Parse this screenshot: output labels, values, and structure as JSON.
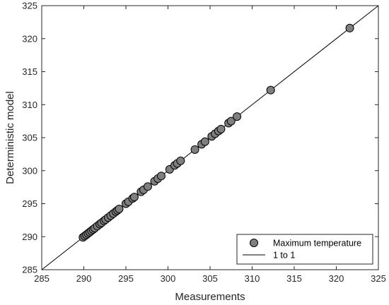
{
  "chart_data": {
    "type": "scatter",
    "title": "",
    "xlabel": "Measurements",
    "ylabel": "Deterministic model",
    "xlim": [
      285,
      325
    ],
    "ylim": [
      285,
      325
    ],
    "xticks": [
      285,
      290,
      295,
      300,
      305,
      310,
      315,
      320,
      325
    ],
    "yticks": [
      285,
      290,
      295,
      300,
      305,
      310,
      315,
      320,
      325
    ],
    "grid": false,
    "legend_position": "bottom-right",
    "series": [
      {
        "name": "Maximum temperature",
        "kind": "scatter",
        "marker_color": "#7f7f7f",
        "points": [
          [
            289.9,
            289.9
          ],
          [
            290.1,
            290.1
          ],
          [
            290.3,
            290.3
          ],
          [
            290.5,
            290.5
          ],
          [
            290.7,
            290.7
          ],
          [
            290.9,
            290.9
          ],
          [
            291.1,
            291.1
          ],
          [
            291.3,
            291.3
          ],
          [
            291.6,
            291.6
          ],
          [
            291.9,
            291.9
          ],
          [
            292.1,
            292.1
          ],
          [
            292.4,
            292.4
          ],
          [
            292.6,
            292.6
          ],
          [
            292.9,
            292.9
          ],
          [
            293.2,
            293.2
          ],
          [
            293.5,
            293.5
          ],
          [
            293.8,
            293.8
          ],
          [
            294.0,
            294.0
          ],
          [
            294.2,
            294.2
          ],
          [
            295.0,
            295.0
          ],
          [
            295.3,
            295.3
          ],
          [
            295.8,
            295.8
          ],
          [
            296.0,
            296.0
          ],
          [
            296.8,
            296.8
          ],
          [
            297.1,
            297.1
          ],
          [
            297.6,
            297.6
          ],
          [
            298.4,
            298.4
          ],
          [
            298.8,
            298.8
          ],
          [
            299.2,
            299.2
          ],
          [
            300.2,
            300.2
          ],
          [
            300.8,
            300.8
          ],
          [
            301.1,
            301.1
          ],
          [
            301.5,
            301.5
          ],
          [
            303.2,
            303.2
          ],
          [
            304.0,
            304.0
          ],
          [
            304.4,
            304.4
          ],
          [
            305.2,
            305.2
          ],
          [
            305.6,
            305.6
          ],
          [
            306.0,
            306.0
          ],
          [
            306.3,
            306.3
          ],
          [
            307.2,
            307.2
          ],
          [
            307.5,
            307.5
          ],
          [
            308.2,
            308.2
          ],
          [
            312.2,
            312.2
          ],
          [
            321.6,
            321.6
          ]
        ]
      },
      {
        "name": "1 to 1",
        "kind": "line",
        "line_color": "#000000",
        "points": [
          [
            285,
            285
          ],
          [
            325,
            325
          ]
        ]
      }
    ]
  }
}
